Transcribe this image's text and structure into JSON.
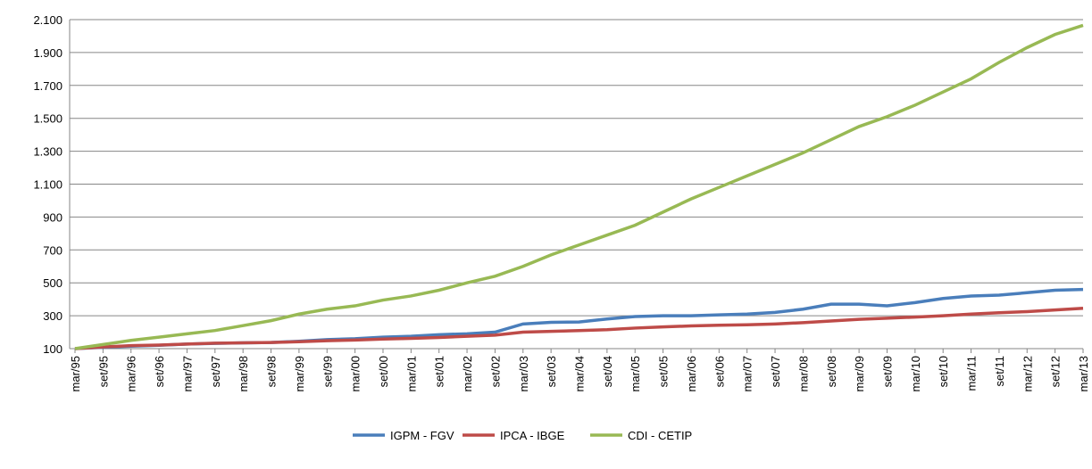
{
  "chart_data": {
    "type": "line",
    "categories": [
      "mar/95",
      "set/95",
      "mar/96",
      "set/96",
      "mar/97",
      "set/97",
      "mar/98",
      "set/98",
      "mar/99",
      "set/99",
      "mar/00",
      "set/00",
      "mar/01",
      "set/01",
      "mar/02",
      "set/02",
      "mar/03",
      "set/03",
      "mar/04",
      "set/04",
      "mar/05",
      "set/05",
      "mar/06",
      "set/06",
      "mar/07",
      "set/07",
      "mar/08",
      "set/08",
      "mar/09",
      "set/09",
      "mar/10",
      "set/10",
      "mar/11",
      "set/11",
      "mar/12",
      "set/12",
      "mar/13"
    ],
    "series": [
      {
        "name": "IGPM - FGV",
        "color": "#4a7ebb",
        "values": [
          100,
          108,
          115,
          120,
          128,
          132,
          135,
          137,
          145,
          155,
          160,
          170,
          175,
          185,
          190,
          200,
          250,
          260,
          262,
          280,
          295,
          300,
          300,
          305,
          310,
          320,
          340,
          370,
          370,
          360,
          380,
          405,
          420,
          425,
          440,
          455,
          460
        ]
      },
      {
        "name": "IPCA - IBGE",
        "color": "#be4b48",
        "values": [
          100,
          110,
          118,
          122,
          128,
          133,
          135,
          137,
          142,
          148,
          152,
          158,
          162,
          168,
          175,
          182,
          200,
          205,
          210,
          215,
          225,
          232,
          238,
          242,
          245,
          250,
          258,
          268,
          278,
          285,
          292,
          300,
          310,
          318,
          325,
          335,
          345
        ]
      },
      {
        "name": "CDI - CETIP",
        "color": "#98b954",
        "values": [
          100,
          125,
          150,
          170,
          190,
          210,
          240,
          270,
          310,
          340,
          360,
          395,
          420,
          455,
          500,
          540,
          600,
          670,
          730,
          790,
          850,
          930,
          1010,
          1080,
          1150,
          1220,
          1290,
          1370,
          1450,
          1510,
          1580,
          1660,
          1740,
          1840,
          1930,
          2010,
          2065
        ]
      }
    ],
    "ylim": [
      100,
      2100
    ],
    "yticks": [
      100,
      300,
      500,
      700,
      900,
      {
        "value": 1100,
        "label": "1.100"
      },
      {
        "value": 1300,
        "label": "1.300"
      },
      {
        "value": 1500,
        "label": "1.500"
      },
      {
        "value": 1700,
        "label": "1.700"
      },
      {
        "value": 1900,
        "label": "1.900"
      },
      {
        "value": 2100,
        "label": "2.100"
      }
    ],
    "grid": true,
    "legend": "bottom"
  }
}
